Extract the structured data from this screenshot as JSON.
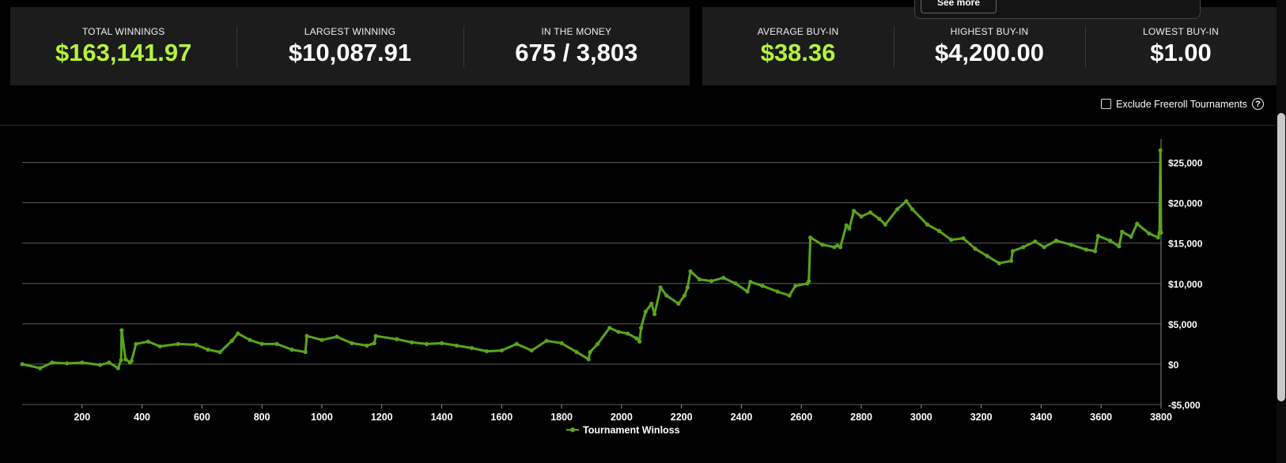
{
  "stats_left": [
    {
      "label": "TOTAL WINNINGS",
      "value": "$163,141.97",
      "color": "#b5f23d"
    },
    {
      "label": "LARGEST WINNING",
      "value": "$10,087.91",
      "color": "#ffffff"
    },
    {
      "label": "IN THE MONEY",
      "value": "675 / 3,803",
      "color": "#ffffff"
    }
  ],
  "stats_right": [
    {
      "label": "AVERAGE BUY-IN",
      "value": "$38.36",
      "color": "#b5f23d"
    },
    {
      "label": "HIGHEST BUY-IN",
      "value": "$4,200.00",
      "color": "#ffffff"
    },
    {
      "label": "LOWEST BUY-IN",
      "value": "$1.00",
      "color": "#ffffff"
    }
  ],
  "popup": {
    "button_label": "See more"
  },
  "filter": {
    "label": "Exclude Freeroll Tournaments",
    "checked": false,
    "help_icon": "question-circle-icon"
  },
  "chart_data": {
    "type": "line",
    "title": "",
    "xlabel": "",
    "ylabel": "",
    "xlim": [
      0,
      3800
    ],
    "ylim": [
      -5000,
      27500
    ],
    "x_ticks": [
      200,
      400,
      600,
      800,
      1000,
      1200,
      1400,
      1600,
      1800,
      2000,
      2200,
      2400,
      2600,
      2800,
      3000,
      3200,
      3400,
      3600,
      3800
    ],
    "y_ticks": [
      -5000,
      0,
      5000,
      10000,
      15000,
      20000,
      25000
    ],
    "y_tick_labels": [
      "-$5,000",
      "$0",
      "$5,000",
      "$10,000",
      "$15,000",
      "$20,000",
      "$25,000"
    ],
    "x_tick_labels": [
      "200",
      "400",
      "600",
      "800",
      "1000",
      "1200",
      "1400",
      "1600",
      "1800",
      "2000",
      "2200",
      "2400",
      "2600",
      "2800",
      "3000",
      "3200",
      "3400",
      "3600",
      "3800"
    ],
    "grid": true,
    "legend_position": "bottom-center",
    "series": [
      {
        "name": "Tournament Winloss",
        "color": "#5aa51e",
        "x": [
          0,
          60,
          100,
          150,
          200,
          260,
          290,
          320,
          330,
          332,
          345,
          360,
          365,
          380,
          420,
          460,
          520,
          580,
          620,
          660,
          700,
          720,
          760,
          800,
          850,
          900,
          945,
          950,
          1000,
          1050,
          1100,
          1150,
          1175,
          1180,
          1250,
          1300,
          1350,
          1400,
          1450,
          1500,
          1550,
          1600,
          1650,
          1700,
          1750,
          1800,
          1850,
          1890,
          1895,
          1920,
          1960,
          1990,
          2020,
          2050,
          2060,
          2065,
          2080,
          2100,
          2110,
          2130,
          2150,
          2190,
          2210,
          2220,
          2230,
          2260,
          2300,
          2340,
          2380,
          2420,
          2430,
          2470,
          2520,
          2560,
          2580,
          2620,
          2625,
          2630,
          2670,
          2710,
          2720,
          2730,
          2750,
          2760,
          2775,
          2800,
          2830,
          2860,
          2880,
          2920,
          2950,
          2970,
          3020,
          3060,
          3100,
          3140,
          3180,
          3220,
          3260,
          3300,
          3305,
          3340,
          3380,
          3410,
          3450,
          3500,
          3550,
          3580,
          3590,
          3630,
          3660,
          3670,
          3700,
          3720,
          3760,
          3790,
          3795,
          3798,
          3800
        ],
        "y": [
          0,
          -500,
          200,
          100,
          200,
          -100,
          200,
          -500,
          500,
          4200,
          600,
          200,
          400,
          2500,
          2800,
          2200,
          2500,
          2400,
          1800,
          1500,
          2900,
          3800,
          3000,
          2500,
          2500,
          1800,
          1500,
          3500,
          3000,
          3400,
          2600,
          2300,
          2600,
          3500,
          3100,
          2700,
          2500,
          2600,
          2300,
          2000,
          1600,
          1700,
          2500,
          1700,
          2900,
          2600,
          1500,
          600,
          1500,
          2500,
          4500,
          4000,
          3800,
          3200,
          2800,
          4500,
          6500,
          7500,
          6200,
          9500,
          8500,
          7500,
          8500,
          9500,
          11500,
          10500,
          10300,
          10700,
          10000,
          9000,
          10200,
          9700,
          9000,
          8500,
          9700,
          10000,
          10300,
          15700,
          14800,
          14500,
          14700,
          14500,
          17200,
          16800,
          19000,
          18300,
          18800,
          18000,
          17300,
          19200,
          20200,
          19200,
          17300,
          16500,
          15400,
          15600,
          14300,
          13400,
          12500,
          12800,
          14000,
          14500,
          15200,
          14500,
          15300,
          14800,
          14200,
          14000,
          15900,
          15300,
          14600,
          16400,
          15800,
          17400,
          16200,
          15700,
          16300,
          26500,
          16300
        ]
      }
    ]
  }
}
